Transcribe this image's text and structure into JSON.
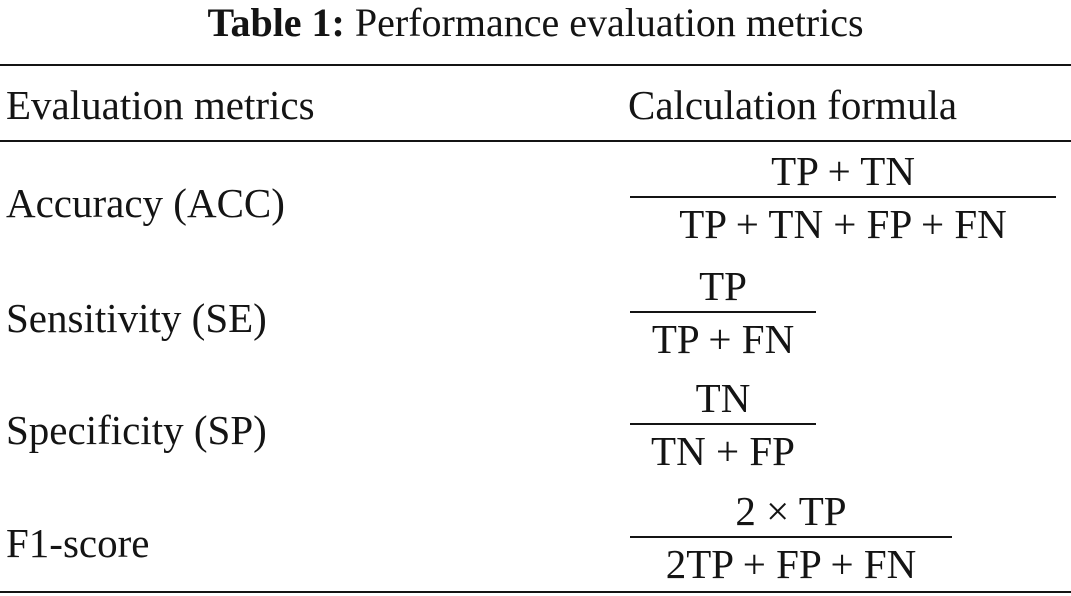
{
  "caption": {
    "label": "Table 1:",
    "text": "Performance evaluation metrics"
  },
  "table": {
    "headers": [
      "Evaluation metrics",
      "Calculation formula"
    ],
    "rows": [
      {
        "metric": "Accuracy (ACC)",
        "numerator": "TP + TN",
        "denominator": "TP + TN + FP + FN"
      },
      {
        "metric": "Sensitivity (SE)",
        "numerator": "TP",
        "denominator": "TP + FN"
      },
      {
        "metric": "Specificity (SP)",
        "numerator": "TN",
        "denominator": "TN + FP"
      },
      {
        "metric": "F1-score",
        "numerator": "2 × TP",
        "denominator": "2TP + FP + FN"
      }
    ]
  }
}
